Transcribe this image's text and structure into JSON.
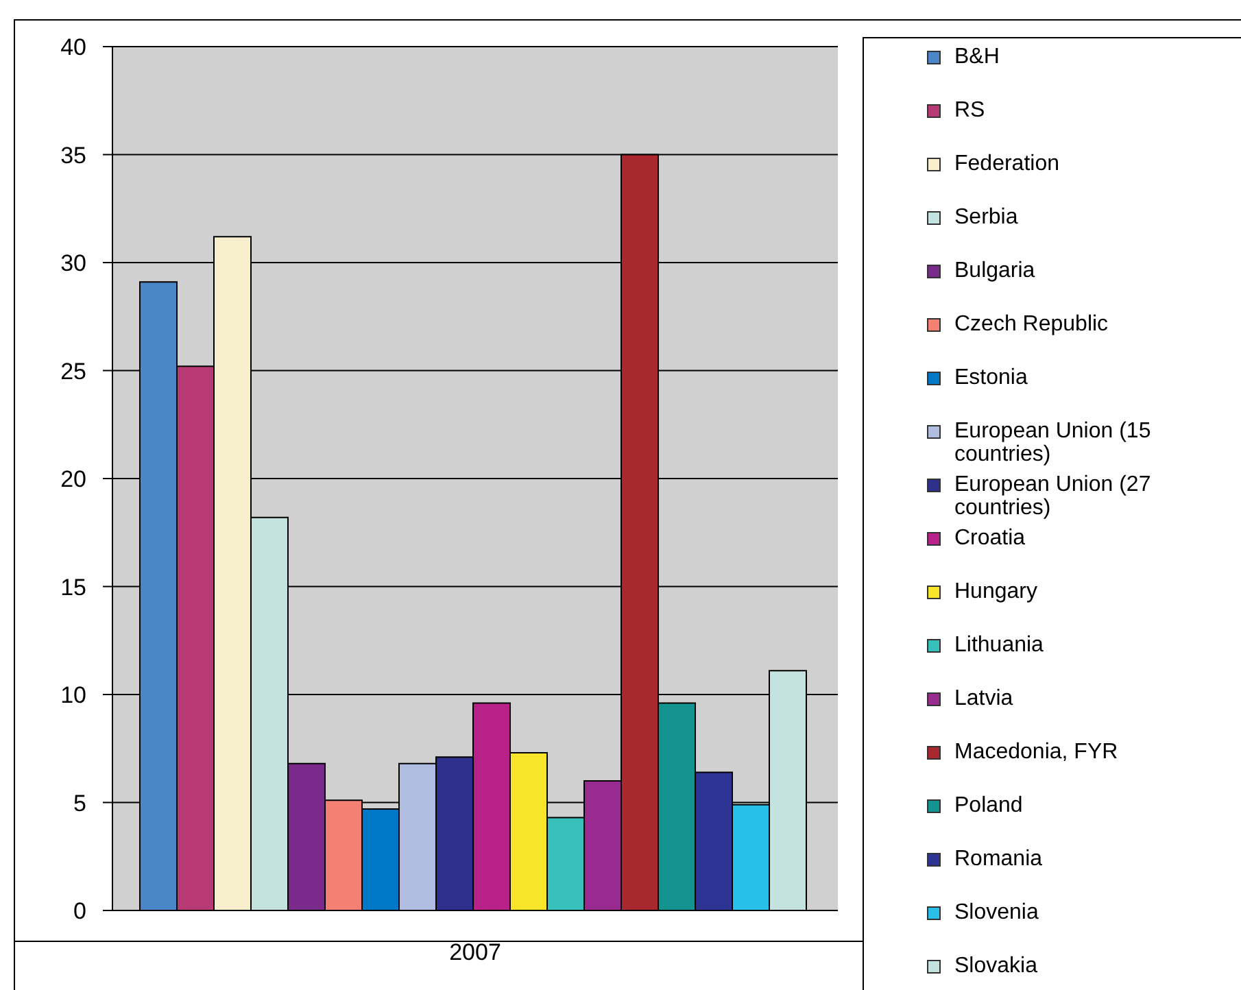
{
  "chart_data": {
    "type": "bar",
    "categories": [
      "2007"
    ],
    "series": [
      {
        "name": "B&H",
        "color": "#4a86c8",
        "values": [
          29.1
        ]
      },
      {
        "name": "RS",
        "color": "#b83a74",
        "values": [
          25.2
        ]
      },
      {
        "name": "Federation",
        "color": "#f8f0cc",
        "values": [
          31.2
        ]
      },
      {
        "name": "Serbia",
        "color": "#c4e2e0",
        "values": [
          18.2
        ]
      },
      {
        "name": "Bulgaria",
        "color": "#7a2a8a",
        "values": [
          6.8
        ]
      },
      {
        "name": "Czech Republic",
        "color": "#f48074",
        "values": [
          5.1
        ]
      },
      {
        "name": "Estonia",
        "color": "#0078c8",
        "values": [
          4.7
        ]
      },
      {
        "name": "European Union (15 countries)",
        "color": "#b0bce0",
        "values": [
          6.8
        ]
      },
      {
        "name": "European Union (27 countries)",
        "color": "#2e2e8c",
        "values": [
          7.1
        ]
      },
      {
        "name": "Croatia",
        "color": "#b82288",
        "values": [
          9.6
        ]
      },
      {
        "name": "Hungary",
        "color": "#f8e428",
        "values": [
          7.3
        ]
      },
      {
        "name": "Lithuania",
        "color": "#38c0bc",
        "values": [
          4.3
        ]
      },
      {
        "name": "Latvia",
        "color": "#982a90",
        "values": [
          6.0
        ]
      },
      {
        "name": "Macedonia, FYR",
        "color": "#a8282e",
        "values": [
          35.0
        ]
      },
      {
        "name": "Poland",
        "color": "#149490",
        "values": [
          9.6
        ]
      },
      {
        "name": "Romania",
        "color": "#2e3494",
        "values": [
          6.4
        ]
      },
      {
        "name": "Slovenia",
        "color": "#28c0e8",
        "values": [
          4.9
        ]
      },
      {
        "name": "Slovakia",
        "color": "#c4e2e0",
        "values": [
          11.1
        ]
      }
    ],
    "ylim": [
      0,
      40
    ],
    "yticks": [
      0,
      5,
      10,
      15,
      20,
      25,
      30,
      35,
      40
    ],
    "grid": "y",
    "legend": "right"
  }
}
